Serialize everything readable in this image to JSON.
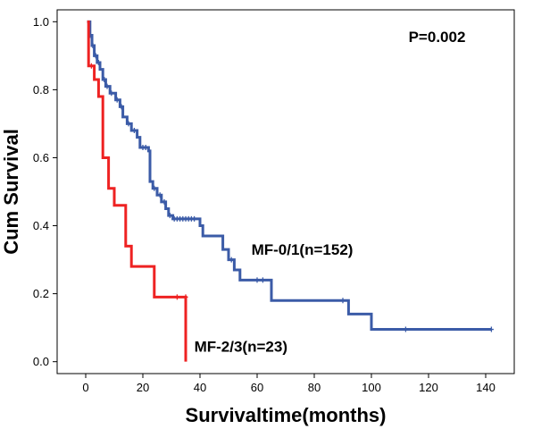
{
  "chart_data": {
    "type": "line",
    "title": "",
    "xlabel": "Survivaltime(months)",
    "ylabel": "Cum Survival",
    "xlim": [
      -10,
      150
    ],
    "ylim": [
      -0.035,
      1.035
    ],
    "xticks": [
      0,
      20,
      40,
      60,
      80,
      100,
      120,
      140
    ],
    "xtick_labels": [
      "0",
      "20",
      "40",
      "60",
      "80",
      "100",
      "120",
      "140"
    ],
    "yticks": [
      0.0,
      0.2,
      0.4,
      0.6,
      0.8,
      1.0
    ],
    "ytick_labels": [
      "0.0",
      "0.2",
      "0.4",
      "0.6",
      "0.8",
      "1.0"
    ],
    "grid": false,
    "legend": "none",
    "annotations": [
      {
        "text": "P=0.002",
        "x": 113,
        "y": 0.94
      },
      {
        "text": "MF-0/1(n=152)",
        "x": 58,
        "y": 0.315
      },
      {
        "text": "MF-2/3(n=23)",
        "x": 38,
        "y": 0.03
      }
    ],
    "series": [
      {
        "name": "MF-0/1(n=152)",
        "color": "#3b5ba7",
        "step_points": [
          [
            0.5,
            1.0
          ],
          [
            1.5,
            0.96
          ],
          [
            2.2,
            0.93
          ],
          [
            3.0,
            0.9
          ],
          [
            4.0,
            0.88
          ],
          [
            5.0,
            0.86
          ],
          [
            6.0,
            0.83
          ],
          [
            7.0,
            0.81
          ],
          [
            8.5,
            0.79
          ],
          [
            10.5,
            0.77
          ],
          [
            12.0,
            0.75
          ],
          [
            13.0,
            0.72
          ],
          [
            14.5,
            0.7
          ],
          [
            16.0,
            0.68
          ],
          [
            18.0,
            0.66
          ],
          [
            19.0,
            0.63
          ],
          [
            22.0,
            0.62
          ],
          [
            22.5,
            0.53
          ],
          [
            23.5,
            0.51
          ],
          [
            25.0,
            0.49
          ],
          [
            26.5,
            0.47
          ],
          [
            28.0,
            0.45
          ],
          [
            29.0,
            0.43
          ],
          [
            30.5,
            0.42
          ],
          [
            40.0,
            0.4
          ],
          [
            41.0,
            0.37
          ],
          [
            48.0,
            0.33
          ],
          [
            50.0,
            0.3
          ],
          [
            52.0,
            0.27
          ],
          [
            54.0,
            0.24
          ],
          [
            65.0,
            0.18
          ],
          [
            92.0,
            0.14
          ],
          [
            100.0,
            0.095
          ],
          [
            142.0,
            0.095
          ]
        ],
        "censored": [
          [
            1.5,
            0.96
          ],
          [
            2.5,
            0.93
          ],
          [
            3.5,
            0.9
          ],
          [
            4.5,
            0.88
          ],
          [
            6.5,
            0.83
          ],
          [
            7.5,
            0.81
          ],
          [
            9.0,
            0.79
          ],
          [
            11.0,
            0.77
          ],
          [
            12.5,
            0.75
          ],
          [
            15.0,
            0.7
          ],
          [
            17.0,
            0.68
          ],
          [
            20.0,
            0.63
          ],
          [
            21.0,
            0.63
          ],
          [
            24.0,
            0.51
          ],
          [
            26.0,
            0.49
          ],
          [
            27.5,
            0.47
          ],
          [
            29.5,
            0.43
          ],
          [
            31.0,
            0.42
          ],
          [
            32.0,
            0.42
          ],
          [
            33.0,
            0.42
          ],
          [
            34.0,
            0.42
          ],
          [
            35.0,
            0.42
          ],
          [
            36.0,
            0.42
          ],
          [
            37.0,
            0.42
          ],
          [
            38.0,
            0.42
          ],
          [
            51.0,
            0.3
          ],
          [
            60.0,
            0.24
          ],
          [
            62.0,
            0.24
          ],
          [
            90.0,
            0.18
          ],
          [
            112.0,
            0.095
          ],
          [
            142.0,
            0.095
          ]
        ]
      },
      {
        "name": "MF-2/3(n=23)",
        "color": "#ee2222",
        "step_points": [
          [
            0.5,
            1.0
          ],
          [
            1.0,
            0.87
          ],
          [
            3.0,
            0.83
          ],
          [
            4.5,
            0.78
          ],
          [
            6.0,
            0.6
          ],
          [
            8.0,
            0.51
          ],
          [
            10.0,
            0.46
          ],
          [
            14.0,
            0.34
          ],
          [
            16.0,
            0.28
          ],
          [
            24.0,
            0.19
          ],
          [
            35.0,
            0.0
          ]
        ],
        "censored": [
          [
            2.0,
            0.87
          ],
          [
            32.0,
            0.19
          ],
          [
            35.0,
            0.19
          ]
        ]
      }
    ]
  }
}
